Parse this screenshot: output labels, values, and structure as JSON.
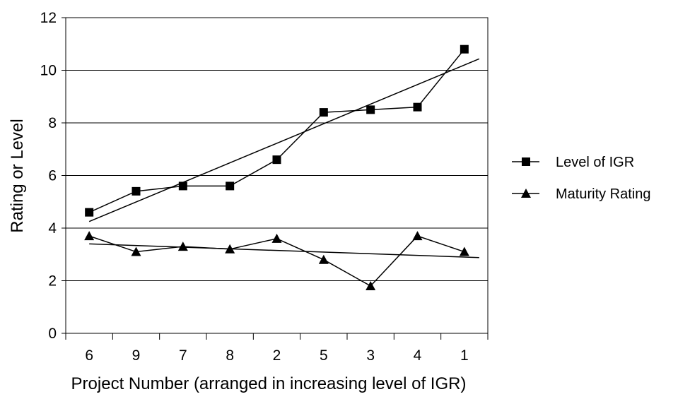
{
  "chart_data": {
    "type": "line",
    "title": "",
    "xlabel": "Project Number (arranged in increasing level of IGR)",
    "ylabel": "Rating or Level",
    "categories": [
      "6",
      "9",
      "7",
      "8",
      "2",
      "5",
      "3",
      "4",
      "1"
    ],
    "ylim": [
      0,
      12
    ],
    "yticks": [
      "0",
      "2",
      "4",
      "6",
      "8",
      "10",
      "12"
    ],
    "grid": true,
    "legend_position": "right",
    "series": [
      {
        "name": "Level of IGR",
        "marker": "square",
        "values": [
          4.6,
          5.4,
          5.6,
          5.6,
          6.6,
          8.4,
          8.5,
          8.6,
          10.8
        ],
        "trendline": {
          "start": 4.25,
          "end": 10.2
        }
      },
      {
        "name": "Maturity Rating",
        "marker": "triangle",
        "values": [
          3.7,
          3.1,
          3.3,
          3.2,
          3.6,
          2.8,
          1.8,
          3.7,
          3.1
        ],
        "trendline": {
          "start": 3.4,
          "end": 2.9
        }
      }
    ]
  }
}
